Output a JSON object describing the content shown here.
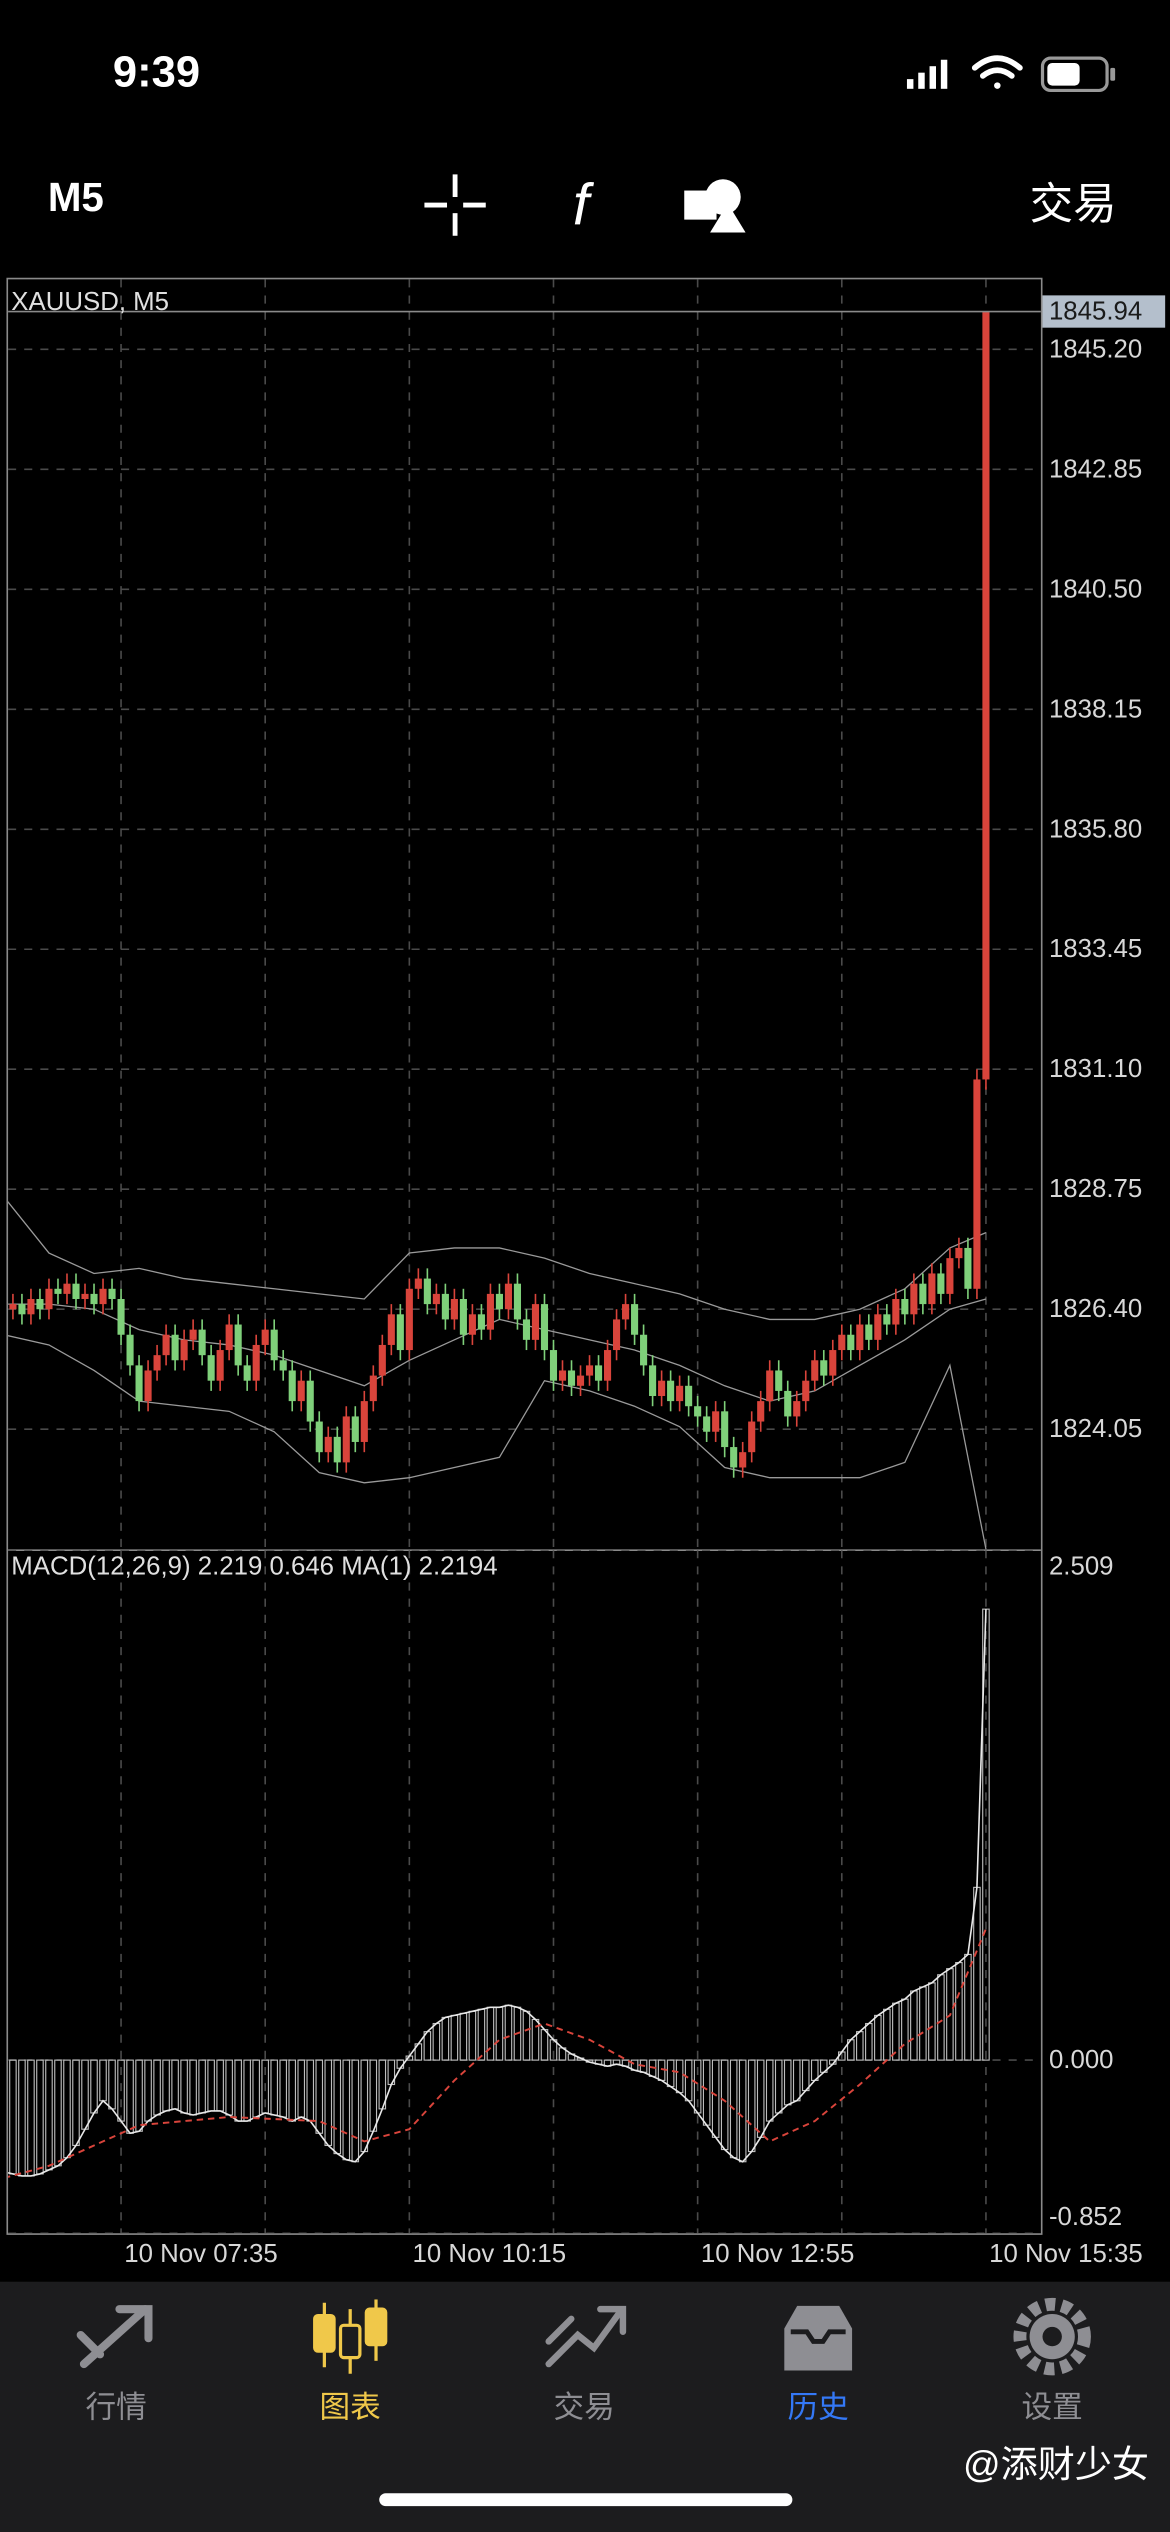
{
  "status_bar": {
    "time": "9:39"
  },
  "toolbar": {
    "period": "M5",
    "trade": "交易"
  },
  "chart_data": [
    {
      "type": "candlestick",
      "title": "XAUUSD, M5",
      "up_color": "#d9443b",
      "down_color": "#7fd07a",
      "band_color": "#9a9a9a",
      "grid": true,
      "xlim": [
        0.46,
        115.1
      ],
      "ylim": [
        1821.68,
        1846.57
      ],
      "yticks": [
        1824.05,
        {
          "value": 1826.4,
          "label": "1826.40"
        },
        1828.75,
        {
          "value": 1831.1,
          "label": "1831.10"
        },
        1833.45,
        {
          "value": 1835.8,
          "label": "1835.80"
        },
        1838.15,
        {
          "value": 1840.5,
          "label": "1840.50"
        },
        1842.85,
        {
          "value": 1845.2,
          "label": "1845.20"
        }
      ],
      "last_price": 1845.94,
      "open": [
        1826.3,
        1826.4,
        1826.5,
        1826.3,
        1826.6,
        1826.4,
        1826.8,
        1826.7,
        1826.9,
        1826.6,
        1826.7,
        1826.5,
        1826.8,
        1826.6,
        1825.9,
        1825.3,
        1824.6,
        1825.2,
        1825.5,
        1825.9,
        1825.4,
        1825.8,
        1826.0,
        1825.5,
        1825.0,
        1825.6,
        1826.1,
        1825.3,
        1825.0,
        1825.7,
        1826.0,
        1825.4,
        1825.2,
        1824.6,
        1825.0,
        1824.2,
        1823.6,
        1823.9,
        1823.4,
        1824.3,
        1823.8,
        1824.6,
        1825.1,
        1825.7,
        1826.3,
        1825.6,
        1826.8,
        1827.0,
        1826.5,
        1826.7,
        1826.2,
        1826.6,
        1825.9,
        1826.3,
        1826.0,
        1826.7,
        1826.4,
        1826.9,
        1826.2,
        1825.8,
        1826.5,
        1825.6,
        1825.0,
        1825.2,
        1824.9,
        1825.1,
        1825.3,
        1825.0,
        1825.6,
        1826.2,
        1826.5,
        1825.9,
        1825.3,
        1824.7,
        1825.0,
        1824.6,
        1824.9,
        1824.5,
        1824.3,
        1824.0,
        1824.4,
        1823.7,
        1823.3,
        1823.6,
        1824.2,
        1824.6,
        1825.2,
        1824.8,
        1824.3,
        1824.6,
        1825.0,
        1825.4,
        1825.1,
        1825.6,
        1825.9,
        1825.6,
        1826.1,
        1825.8,
        1826.3,
        1826.1,
        1826.6,
        1826.3,
        1826.9,
        1826.5,
        1827.1,
        1826.7,
        1827.4,
        1827.6,
        1826.8,
        1830.9
      ],
      "high": [
        1826.6,
        1826.7,
        1826.7,
        1826.8,
        1826.8,
        1827.0,
        1827.0,
        1827.1,
        1827.1,
        1826.9,
        1826.9,
        1827.0,
        1827.0,
        1826.8,
        1826.1,
        1825.5,
        1825.4,
        1825.7,
        1826.1,
        1826.1,
        1826.0,
        1826.2,
        1826.2,
        1825.7,
        1825.8,
        1826.3,
        1826.3,
        1825.5,
        1825.9,
        1826.2,
        1826.2,
        1825.6,
        1825.4,
        1825.2,
        1825.2,
        1824.4,
        1824.1,
        1824.1,
        1824.5,
        1824.5,
        1824.8,
        1825.3,
        1825.9,
        1826.5,
        1826.5,
        1827.0,
        1827.2,
        1827.2,
        1826.9,
        1826.9,
        1826.8,
        1826.8,
        1826.5,
        1826.5,
        1826.9,
        1826.9,
        1827.1,
        1827.1,
        1826.4,
        1826.7,
        1826.7,
        1825.8,
        1825.4,
        1825.4,
        1825.3,
        1825.5,
        1825.5,
        1825.8,
        1826.4,
        1826.7,
        1826.7,
        1826.1,
        1825.5,
        1825.2,
        1825.2,
        1825.1,
        1825.1,
        1824.7,
        1824.5,
        1824.6,
        1824.6,
        1823.9,
        1823.8,
        1824.4,
        1824.8,
        1825.4,
        1825.4,
        1825.0,
        1824.8,
        1825.2,
        1825.6,
        1825.6,
        1825.8,
        1826.1,
        1826.1,
        1826.3,
        1826.3,
        1826.5,
        1826.5,
        1826.8,
        1826.8,
        1827.1,
        1827.1,
        1827.3,
        1827.3,
        1827.6,
        1827.8,
        1827.8,
        1831.1,
        1845.94
      ],
      "low": [
        1826.1,
        1826.2,
        1826.1,
        1826.1,
        1826.2,
        1826.2,
        1826.5,
        1826.5,
        1826.4,
        1826.4,
        1826.3,
        1826.3,
        1826.4,
        1825.7,
        1825.1,
        1824.4,
        1824.4,
        1825.0,
        1825.3,
        1825.2,
        1825.2,
        1825.6,
        1825.3,
        1824.8,
        1824.8,
        1825.4,
        1825.1,
        1824.8,
        1824.8,
        1825.5,
        1825.2,
        1825.0,
        1824.4,
        1824.4,
        1824.0,
        1823.4,
        1823.4,
        1823.2,
        1823.2,
        1823.6,
        1823.6,
        1824.4,
        1824.9,
        1825.5,
        1825.4,
        1825.4,
        1826.6,
        1826.3,
        1826.3,
        1826.0,
        1826.0,
        1825.7,
        1825.7,
        1825.8,
        1825.8,
        1826.2,
        1826.2,
        1826.0,
        1825.6,
        1825.6,
        1825.4,
        1824.8,
        1824.8,
        1824.7,
        1824.7,
        1824.9,
        1824.8,
        1824.8,
        1825.4,
        1826.0,
        1825.7,
        1825.1,
        1824.5,
        1824.5,
        1824.4,
        1824.4,
        1824.3,
        1824.1,
        1823.8,
        1823.8,
        1823.5,
        1823.1,
        1823.1,
        1823.4,
        1824.0,
        1824.4,
        1824.6,
        1824.1,
        1824.1,
        1824.4,
        1824.8,
        1824.9,
        1824.9,
        1825.4,
        1825.4,
        1825.4,
        1825.6,
        1825.6,
        1825.9,
        1825.9,
        1826.1,
        1826.1,
        1826.3,
        1826.3,
        1826.5,
        1826.5,
        1827.2,
        1826.6,
        1826.6,
        1830.7
      ],
      "close": [
        1826.4,
        1826.5,
        1826.3,
        1826.6,
        1826.4,
        1826.8,
        1826.7,
        1826.9,
        1826.6,
        1826.7,
        1826.5,
        1826.8,
        1826.6,
        1825.9,
        1825.3,
        1824.6,
        1825.2,
        1825.5,
        1825.9,
        1825.4,
        1825.8,
        1826.0,
        1825.5,
        1825.0,
        1825.6,
        1826.1,
        1825.3,
        1825.0,
        1825.7,
        1826.0,
        1825.4,
        1825.2,
        1824.6,
        1825.0,
        1824.2,
        1823.6,
        1823.9,
        1823.4,
        1824.3,
        1823.8,
        1824.6,
        1825.1,
        1825.7,
        1826.3,
        1825.6,
        1826.8,
        1827.0,
        1826.5,
        1826.7,
        1826.2,
        1826.6,
        1825.9,
        1826.3,
        1826.0,
        1826.7,
        1826.4,
        1826.9,
        1826.2,
        1825.8,
        1826.5,
        1825.6,
        1825.0,
        1825.2,
        1824.9,
        1825.1,
        1825.3,
        1825.0,
        1825.6,
        1826.2,
        1826.5,
        1825.9,
        1825.3,
        1824.7,
        1825.0,
        1824.6,
        1824.9,
        1824.5,
        1824.3,
        1824.0,
        1824.4,
        1823.7,
        1823.3,
        1823.6,
        1824.2,
        1824.6,
        1825.2,
        1824.8,
        1824.3,
        1824.6,
        1825.0,
        1825.4,
        1825.1,
        1825.6,
        1825.9,
        1825.6,
        1826.1,
        1825.8,
        1826.3,
        1826.1,
        1826.6,
        1826.3,
        1826.9,
        1826.5,
        1827.1,
        1826.7,
        1827.4,
        1827.6,
        1826.8,
        1830.9,
        1845.94
      ],
      "bands": {
        "x": [
          0,
          5,
          10,
          15,
          20,
          25,
          30,
          35,
          40,
          45,
          50,
          55,
          60,
          65,
          70,
          75,
          80,
          85,
          90,
          95,
          100,
          105,
          109
        ],
        "upper": [
          1828.6,
          1827.5,
          1827.1,
          1827.2,
          1827.0,
          1826.9,
          1826.8,
          1826.7,
          1826.6,
          1827.5,
          1827.6,
          1827.6,
          1827.4,
          1827.1,
          1826.9,
          1826.7,
          1826.4,
          1826.2,
          1826.2,
          1826.4,
          1826.8,
          1827.6,
          1827.9
        ],
        "middle": [
          1826.5,
          1826.5,
          1826.4,
          1826.0,
          1825.8,
          1825.7,
          1825.5,
          1825.2,
          1824.9,
          1825.4,
          1825.8,
          1826.2,
          1826.0,
          1825.8,
          1825.6,
          1825.3,
          1824.9,
          1824.6,
          1824.8,
          1825.3,
          1825.8,
          1826.4,
          1826.6
        ],
        "lower": [
          1825.9,
          1825.7,
          1825.2,
          1824.6,
          1824.5,
          1824.4,
          1824.0,
          1823.2,
          1823.0,
          1823.1,
          1823.3,
          1823.5,
          1825.0,
          1824.8,
          1824.5,
          1824.1,
          1823.3,
          1823.1,
          1823.1,
          1823.1,
          1823.4,
          1825.3,
          1821.7
        ]
      }
    },
    {
      "type": "bar",
      "title": "MACD(12,26,9) 2.219 0.646 MA(1) 2.2194",
      "color": "#bdbdbd",
      "line_color": "#e8e8e8",
      "signal_color": "#d9443b",
      "grid": true,
      "ylim": [
        -0.852,
        2.509
      ],
      "yticks": [
        -0.852,
        {
          "value": 0,
          "label": "0.000"
        },
        2.509
      ],
      "xticks": [
        {
          "value": 13,
          "label": "10 Nov 07:35"
        },
        {
          "value": 29,
          "label": null
        },
        {
          "value": 45,
          "label": "10 Nov 10:15"
        },
        {
          "value": 61,
          "label": null
        },
        {
          "value": 77,
          "label": "10 Nov 12:55"
        },
        {
          "value": 93,
          "label": null
        },
        {
          "value": 109,
          "label": "10 Nov 15:35"
        }
      ],
      "values": [
        -0.55,
        -0.56,
        -0.57,
        -0.57,
        -0.56,
        -0.54,
        -0.52,
        -0.48,
        -0.42,
        -0.34,
        -0.26,
        -0.2,
        -0.24,
        -0.3,
        -0.36,
        -0.35,
        -0.3,
        -0.27,
        -0.25,
        -0.24,
        -0.26,
        -0.27,
        -0.26,
        -0.25,
        -0.25,
        -0.27,
        -0.3,
        -0.3,
        -0.28,
        -0.26,
        -0.27,
        -0.28,
        -0.3,
        -0.28,
        -0.3,
        -0.36,
        -0.42,
        -0.46,
        -0.49,
        -0.5,
        -0.45,
        -0.35,
        -0.24,
        -0.12,
        -0.04,
        0.02,
        0.08,
        0.14,
        0.18,
        0.21,
        0.22,
        0.23,
        0.24,
        0.25,
        0.26,
        0.26,
        0.27,
        0.26,
        0.24,
        0.2,
        0.15,
        0.1,
        0.06,
        0.03,
        0.01,
        -0.01,
        -0.02,
        -0.03,
        -0.02,
        -0.03,
        -0.05,
        -0.06,
        -0.08,
        -0.1,
        -0.13,
        -0.16,
        -0.2,
        -0.26,
        -0.32,
        -0.38,
        -0.44,
        -0.48,
        -0.5,
        -0.45,
        -0.38,
        -0.3,
        -0.26,
        -0.22,
        -0.2,
        -0.15,
        -0.1,
        -0.06,
        -0.02,
        0.04,
        0.1,
        0.14,
        0.18,
        0.22,
        0.25,
        0.28,
        0.3,
        0.34,
        0.36,
        0.38,
        0.42,
        0.45,
        0.48,
        0.52,
        0.85,
        2.219
      ],
      "signal": {
        "x": [
          0,
          5,
          10,
          15,
          20,
          25,
          30,
          35,
          40,
          45,
          50,
          55,
          60,
          65,
          70,
          75,
          80,
          85,
          90,
          95,
          100,
          105,
          109
        ],
        "values": [
          -0.58,
          -0.52,
          -0.42,
          -0.32,
          -0.3,
          -0.28,
          -0.29,
          -0.3,
          -0.4,
          -0.34,
          -0.1,
          0.1,
          0.18,
          0.1,
          -0.02,
          -0.06,
          -0.2,
          -0.4,
          -0.3,
          -0.12,
          0.08,
          0.22,
          0.646
        ]
      }
    }
  ],
  "tab_bar": {
    "tabs": [
      "行情",
      "图表",
      "交易",
      "历史",
      "设置"
    ]
  },
  "watermark": "@添财少女"
}
